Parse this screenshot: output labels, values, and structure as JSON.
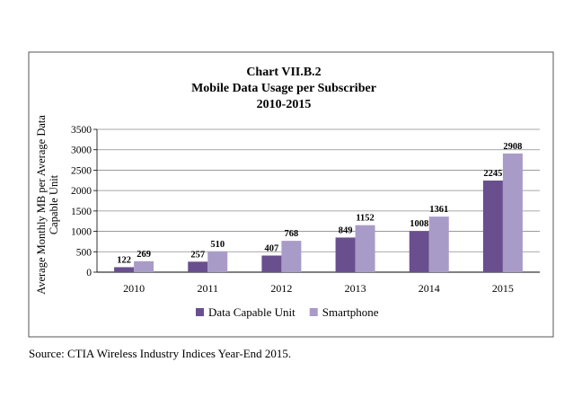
{
  "colors": {
    "series1": "#6a4f8f",
    "series2": "#a99bc8",
    "grid": "#8c8c8c",
    "frame": "#555555"
  },
  "chart_data": {
    "type": "bar",
    "title": "Chart VII.B.2",
    "subtitle": "Mobile Data Usage per Subscriber",
    "period": "2010-2015",
    "ylabel": "Average Monthly MB per Average Data Capable Unit",
    "ylabel_lines": [
      "Average Monthly MB per Average Data",
      "Capable Unit"
    ],
    "xlabel": "",
    "ylim": [
      0,
      3500
    ],
    "yticks": [
      0,
      500,
      1000,
      1500,
      2000,
      2500,
      3000,
      3500
    ],
    "ytick_labels": [
      "0",
      "500",
      "1000",
      "1500",
      "2000",
      "2500",
      "3000",
      "3500"
    ],
    "categories": [
      "2010",
      "2011",
      "2012",
      "2013",
      "2014",
      "2015"
    ],
    "series": [
      {
        "name": "Data Capable Unit",
        "values": [
          122,
          257,
          407,
          849,
          1008,
          2245
        ],
        "labels": [
          "122",
          "257",
          "407",
          "849",
          "1008",
          "2245"
        ]
      },
      {
        "name": "Smartphone",
        "values": [
          269,
          510,
          768,
          1152,
          1361,
          2908
        ],
        "labels": [
          "269",
          "510",
          "768",
          "1152",
          "1361",
          "2908"
        ]
      }
    ],
    "grid": true,
    "legend_position": "bottom"
  },
  "source": "Source:  CTIA Wireless Industry Indices Year-End 2015."
}
